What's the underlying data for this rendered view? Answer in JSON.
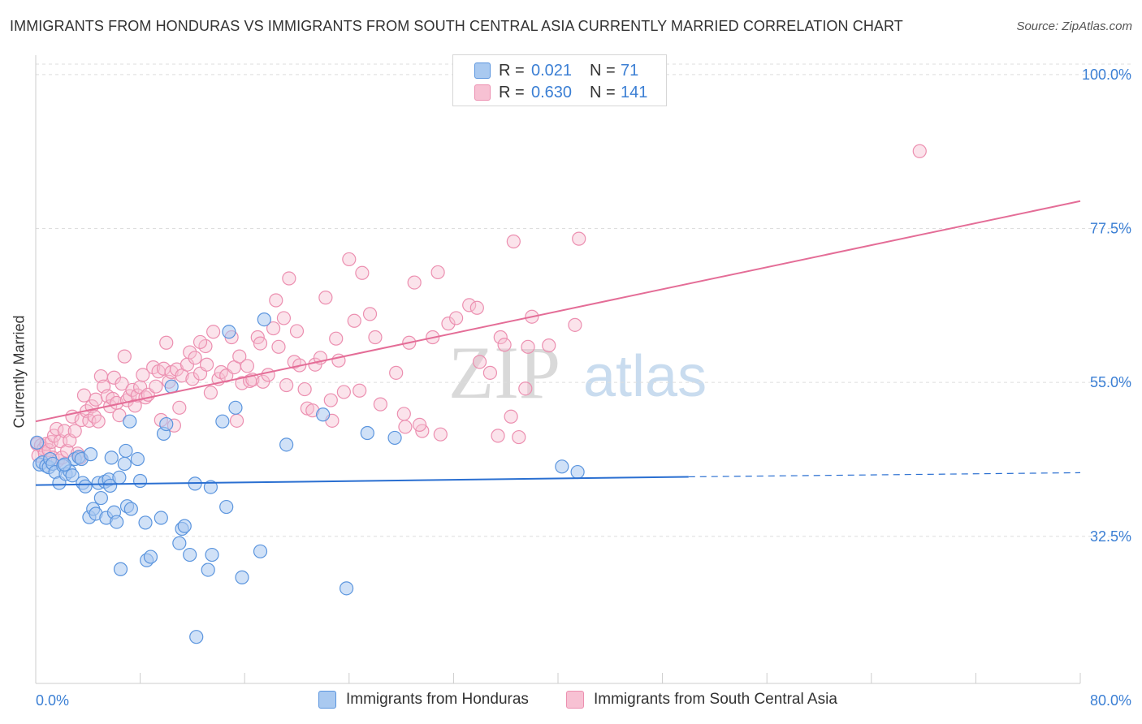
{
  "title": "IMMIGRANTS FROM HONDURAS VS IMMIGRANTS FROM SOUTH CENTRAL ASIA CURRENTLY MARRIED CORRELATION CHART",
  "source": "Source: ZipAtlas.com",
  "watermark": {
    "part1": "ZIP",
    "part2": "atlas"
  },
  "legend_top": {
    "rows": [
      {
        "r_label": "R =",
        "r_value": "0.021",
        "n_label": "N =",
        "n_value": "71"
      },
      {
        "r_label": "R =",
        "r_value": "0.630",
        "n_label": "N =",
        "n_value": "141"
      }
    ]
  },
  "chart_data": {
    "type": "scatter",
    "title": "IMMIGRANTS FROM HONDURAS VS IMMIGRANTS FROM SOUTH CENTRAL ASIA CURRENTLY MARRIED CORRELATION CHART",
    "xlabel": "",
    "ylabel": "Currently Married",
    "xlim": [
      0,
      80
    ],
    "ylim": [
      11,
      102
    ],
    "x_tick_labels": [
      "0.0%",
      "80.0%"
    ],
    "y_ticks": [
      {
        "value": 100.0,
        "label": "100.0%"
      },
      {
        "value": 77.5,
        "label": "77.5%"
      },
      {
        "value": 55.0,
        "label": "55.0%"
      },
      {
        "value": 32.5,
        "label": "32.5%"
      }
    ],
    "grid": "horizontal dashed",
    "legend_position": "bottom",
    "colors": {
      "honduras_fill": "#a9c9f0",
      "honduras_stroke": "#5b95de",
      "honduras_line": "#2a6fd1",
      "asia_fill": "#f7c1d3",
      "asia_stroke": "#ec8fb0",
      "asia_line": "#e46d97",
      "tick_text": "#3b7fd4"
    },
    "series": [
      {
        "name": "Immigrants from Honduras",
        "trend": {
          "x0": 0,
          "y0": 40.0,
          "x1": 50,
          "y1": 41.2,
          "dashed_to_x": 80,
          "dashed_y1": 41.8
        },
        "points": [
          [
            0.1,
            46.2
          ],
          [
            0.3,
            43.0
          ],
          [
            0.5,
            43.3
          ],
          [
            0.8,
            42.8
          ],
          [
            1.0,
            42.6
          ],
          [
            1.1,
            43.8
          ],
          [
            1.3,
            43.1
          ],
          [
            1.5,
            41.9
          ],
          [
            1.8,
            40.3
          ],
          [
            2.1,
            42.8
          ],
          [
            2.3,
            41.6
          ],
          [
            2.6,
            42.0
          ],
          [
            2.8,
            41.4
          ],
          [
            3.0,
            43.8
          ],
          [
            3.3,
            44.1
          ],
          [
            3.5,
            43.8
          ],
          [
            3.6,
            40.3
          ],
          [
            3.8,
            39.8
          ],
          [
            4.1,
            35.3
          ],
          [
            4.2,
            44.5
          ],
          [
            4.4,
            36.5
          ],
          [
            4.6,
            35.8
          ],
          [
            4.8,
            40.3
          ],
          [
            5.0,
            38.1
          ],
          [
            5.3,
            40.5
          ],
          [
            5.4,
            35.2
          ],
          [
            5.6,
            40.8
          ],
          [
            5.7,
            39.9
          ],
          [
            5.8,
            44.0
          ],
          [
            6.0,
            36.0
          ],
          [
            6.2,
            34.6
          ],
          [
            6.4,
            41.1
          ],
          [
            6.5,
            27.7
          ],
          [
            6.8,
            43.1
          ],
          [
            6.9,
            45.0
          ],
          [
            7.0,
            36.9
          ],
          [
            7.2,
            49.3
          ],
          [
            7.3,
            36.5
          ],
          [
            7.8,
            43.8
          ],
          [
            8.0,
            40.6
          ],
          [
            8.4,
            34.5
          ],
          [
            8.5,
            29.0
          ],
          [
            8.8,
            29.5
          ],
          [
            9.6,
            35.2
          ],
          [
            9.8,
            47.5
          ],
          [
            10.0,
            48.9
          ],
          [
            10.4,
            54.4
          ],
          [
            11.0,
            31.5
          ],
          [
            11.2,
            33.6
          ],
          [
            11.4,
            34.0
          ],
          [
            11.8,
            29.8
          ],
          [
            12.2,
            40.2
          ],
          [
            13.2,
            27.6
          ],
          [
            13.4,
            39.7
          ],
          [
            13.5,
            29.8
          ],
          [
            14.3,
            49.3
          ],
          [
            14.6,
            36.8
          ],
          [
            14.8,
            62.4
          ],
          [
            15.3,
            51.3
          ],
          [
            15.8,
            26.5
          ],
          [
            17.2,
            30.3
          ],
          [
            17.5,
            64.2
          ],
          [
            19.2,
            45.9
          ],
          [
            22.0,
            50.3
          ],
          [
            23.8,
            24.9
          ],
          [
            25.4,
            47.6
          ],
          [
            27.5,
            46.9
          ],
          [
            12.3,
            17.8
          ],
          [
            40.3,
            42.7
          ],
          [
            41.5,
            41.9
          ],
          [
            2.2,
            43.0
          ]
        ]
      },
      {
        "name": "Immigrants from South Central Asia",
        "trend": {
          "x0": 0,
          "y0": 49.3,
          "x1": 80,
          "y1": 81.5
        },
        "points": [
          [
            0.1,
            46.0
          ],
          [
            0.2,
            44.3
          ],
          [
            0.4,
            45.8
          ],
          [
            0.6,
            45.3
          ],
          [
            0.7,
            44.6
          ],
          [
            0.8,
            46.0
          ],
          [
            1.0,
            45.1
          ],
          [
            1.2,
            46.3
          ],
          [
            1.3,
            44.0
          ],
          [
            1.4,
            47.2
          ],
          [
            1.6,
            48.2
          ],
          [
            1.7,
            43.6
          ],
          [
            1.9,
            46.4
          ],
          [
            2.0,
            44.0
          ],
          [
            2.2,
            47.9
          ],
          [
            2.4,
            45.0
          ],
          [
            2.6,
            46.5
          ],
          [
            2.8,
            50.0
          ],
          [
            3.0,
            47.9
          ],
          [
            3.2,
            44.6
          ],
          [
            3.4,
            44.0
          ],
          [
            3.5,
            49.5
          ],
          [
            3.7,
            53.1
          ],
          [
            3.9,
            50.8
          ],
          [
            4.1,
            49.4
          ],
          [
            4.3,
            51.5
          ],
          [
            4.5,
            50.0
          ],
          [
            4.6,
            52.5
          ],
          [
            4.8,
            49.3
          ],
          [
            5.0,
            55.9
          ],
          [
            5.2,
            54.4
          ],
          [
            5.5,
            53.0
          ],
          [
            5.7,
            51.5
          ],
          [
            5.9,
            52.6
          ],
          [
            6.0,
            55.7
          ],
          [
            6.2,
            52.0
          ],
          [
            6.4,
            50.2
          ],
          [
            6.6,
            54.8
          ],
          [
            6.8,
            58.8
          ],
          [
            7.0,
            52.4
          ],
          [
            7.2,
            53.0
          ],
          [
            7.4,
            53.9
          ],
          [
            7.6,
            51.6
          ],
          [
            7.8,
            53.1
          ],
          [
            8.0,
            54.3
          ],
          [
            8.2,
            56.1
          ],
          [
            8.4,
            52.8
          ],
          [
            8.6,
            53.2
          ],
          [
            9.0,
            57.2
          ],
          [
            9.2,
            54.4
          ],
          [
            9.4,
            56.6
          ],
          [
            9.6,
            49.5
          ],
          [
            9.8,
            57.0
          ],
          [
            10.0,
            60.8
          ],
          [
            10.2,
            55.1
          ],
          [
            10.4,
            56.5
          ],
          [
            10.6,
            48.7
          ],
          [
            10.8,
            56.9
          ],
          [
            11.0,
            51.3
          ],
          [
            11.2,
            56.0
          ],
          [
            11.6,
            57.6
          ],
          [
            11.8,
            59.4
          ],
          [
            12.0,
            55.5
          ],
          [
            12.2,
            58.6
          ],
          [
            12.6,
            56.3
          ],
          [
            13.0,
            60.3
          ],
          [
            13.4,
            53.5
          ],
          [
            13.6,
            62.4
          ],
          [
            14.0,
            55.5
          ],
          [
            14.2,
            56.5
          ],
          [
            14.6,
            56.0
          ],
          [
            15.0,
            61.6
          ],
          [
            15.2,
            57.2
          ],
          [
            15.4,
            49.4
          ],
          [
            15.6,
            58.8
          ],
          [
            15.8,
            54.9
          ],
          [
            16.2,
            57.4
          ],
          [
            16.4,
            55.2
          ],
          [
            16.6,
            55.4
          ],
          [
            17.0,
            61.6
          ],
          [
            17.2,
            60.7
          ],
          [
            17.4,
            55.1
          ],
          [
            17.8,
            56.1
          ],
          [
            18.2,
            62.9
          ],
          [
            18.4,
            67.0
          ],
          [
            18.6,
            60.2
          ],
          [
            19.0,
            64.4
          ],
          [
            19.2,
            54.6
          ],
          [
            19.4,
            70.2
          ],
          [
            19.8,
            58.0
          ],
          [
            20.0,
            62.5
          ],
          [
            20.2,
            57.5
          ],
          [
            20.6,
            54.0
          ],
          [
            20.8,
            51.2
          ],
          [
            21.2,
            50.9
          ],
          [
            21.4,
            57.6
          ],
          [
            21.8,
            58.6
          ],
          [
            22.2,
            67.4
          ],
          [
            22.6,
            52.4
          ],
          [
            23.0,
            61.4
          ],
          [
            23.2,
            58.2
          ],
          [
            23.6,
            53.6
          ],
          [
            24.0,
            73.0
          ],
          [
            24.4,
            64.0
          ],
          [
            24.8,
            53.8
          ],
          [
            25.0,
            71.0
          ],
          [
            25.6,
            65.0
          ],
          [
            26.0,
            61.6
          ],
          [
            26.4,
            51.8
          ],
          [
            27.6,
            56.4
          ],
          [
            28.2,
            50.4
          ],
          [
            28.6,
            60.8
          ],
          [
            29.0,
            69.6
          ],
          [
            29.6,
            47.9
          ],
          [
            30.4,
            61.6
          ],
          [
            30.8,
            71.1
          ],
          [
            31.0,
            47.4
          ],
          [
            31.6,
            63.6
          ],
          [
            32.2,
            64.4
          ],
          [
            33.2,
            66.3
          ],
          [
            33.8,
            65.9
          ],
          [
            34.0,
            58.0
          ],
          [
            34.8,
            56.4
          ],
          [
            35.4,
            47.2
          ],
          [
            35.6,
            61.6
          ],
          [
            35.9,
            60.5
          ],
          [
            36.4,
            50.0
          ],
          [
            36.6,
            75.6
          ],
          [
            37.0,
            47.0
          ],
          [
            37.5,
            54.1
          ],
          [
            37.7,
            60.2
          ],
          [
            38.0,
            64.6
          ],
          [
            39.3,
            60.4
          ],
          [
            41.3,
            63.4
          ],
          [
            41.6,
            76.0
          ],
          [
            67.7,
            88.8
          ],
          [
            29.4,
            48.8
          ],
          [
            28.3,
            48.5
          ],
          [
            12.6,
            60.9
          ],
          [
            13.1,
            57.6
          ],
          [
            22.7,
            49.4
          ]
        ]
      }
    ]
  },
  "legend_bottom": {
    "items": [
      {
        "label": "Immigrants from Honduras"
      },
      {
        "label": "Immigrants from South Central Asia"
      }
    ]
  }
}
